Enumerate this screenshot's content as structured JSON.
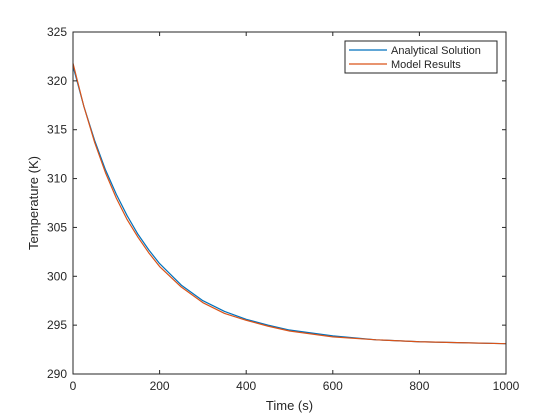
{
  "chart_data": {
    "type": "line",
    "title": "",
    "xlabel": "Time (s)",
    "ylabel": "Temperature (K)",
    "xlim": [
      0,
      1000
    ],
    "ylim": [
      290,
      325
    ],
    "xticks": [
      0,
      200,
      400,
      600,
      800,
      1000
    ],
    "yticks": [
      290,
      295,
      300,
      305,
      310,
      315,
      320,
      325
    ],
    "grid": false,
    "legend_position": "top-right",
    "series": [
      {
        "name": "Analytical Solution",
        "color": "#0072BD",
        "x": [
          0,
          25,
          50,
          75,
          100,
          125,
          150,
          175,
          200,
          250,
          300,
          350,
          400,
          450,
          500,
          600,
          700,
          800,
          900,
          1000
        ],
        "y": [
          321.5,
          317.4,
          313.9,
          310.9,
          308.4,
          306.2,
          304.3,
          302.7,
          301.3,
          299.1,
          297.5,
          296.4,
          295.6,
          295.0,
          294.5,
          293.9,
          293.5,
          293.3,
          293.2,
          293.1
        ]
      },
      {
        "name": "Model Results",
        "color": "#D95319",
        "x": [
          0,
          25,
          50,
          75,
          100,
          125,
          150,
          175,
          200,
          250,
          300,
          350,
          400,
          450,
          500,
          600,
          700,
          800,
          900,
          1000
        ],
        "y": [
          321.8,
          317.4,
          313.7,
          310.6,
          308.0,
          305.8,
          304.0,
          302.4,
          301.0,
          298.9,
          297.3,
          296.2,
          295.5,
          294.9,
          294.4,
          293.8,
          293.5,
          293.3,
          293.2,
          293.1
        ]
      }
    ]
  }
}
